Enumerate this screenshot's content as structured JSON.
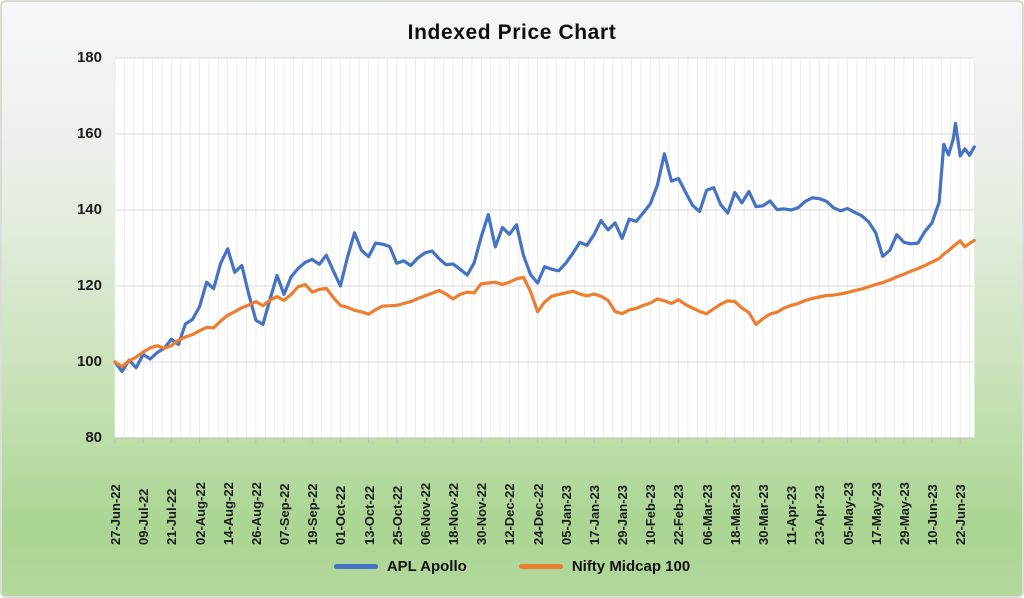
{
  "title": "Indexed Price Chart",
  "colors": {
    "apl_apollo": "#4472c4",
    "nifty_midcap": "#ed7d31",
    "plot_background": "#ffffff",
    "grid_vertical": "#ececec",
    "grid_horizontal": "#d9d9d9",
    "axis_line": "#bfbfbf",
    "text": "#1a1a1a",
    "page_gradient_top": "#f4f7f8",
    "page_gradient_bottom": "#abd593"
  },
  "chart_data": {
    "type": "line",
    "title": "Indexed Price Chart",
    "xlabel": "",
    "ylabel": "",
    "ylim": [
      80,
      180
    ],
    "y_ticks": [
      80,
      100,
      120,
      140,
      160,
      180
    ],
    "grid": {
      "horizontal": true,
      "vertical": true,
      "vertical_interval_days": 4
    },
    "legend_position": "bottom",
    "x_unit": "days since first point (27-Jun-22)",
    "x_tick_interval_days": 12,
    "x_tick_labels": [
      "27-Jun-22",
      "09-Jul-22",
      "21-Jul-22",
      "02-Aug-22",
      "14-Aug-22",
      "26-Aug-22",
      "07-Sep-22",
      "19-Sep-22",
      "01-Oct-22",
      "13-Oct-22",
      "25-Oct-22",
      "06-Nov-22",
      "18-Nov-22",
      "30-Nov-22",
      "12-Dec-22",
      "24-Dec-22",
      "05-Jan-23",
      "17-Jan-23",
      "29-Jan-23",
      "10-Feb-23",
      "22-Feb-23",
      "06-Mar-23",
      "18-Mar-23",
      "30-Mar-23",
      "11-Apr-23",
      "23-Apr-23",
      "05-May-23",
      "17-May-23",
      "29-May-23",
      "10-Jun-23",
      "22-Jun-23"
    ],
    "days": [
      0,
      3,
      6,
      9,
      12,
      15,
      18,
      21,
      24,
      27,
      30,
      33,
      36,
      39,
      42,
      45,
      48,
      51,
      54,
      57,
      60,
      63,
      66,
      69,
      72,
      75,
      78,
      81,
      84,
      87,
      90,
      93,
      96,
      99,
      102,
      105,
      108,
      111,
      114,
      117,
      120,
      123,
      126,
      129,
      132,
      135,
      138,
      141,
      144,
      147,
      150,
      153,
      156,
      159,
      162,
      165,
      168,
      171,
      174,
      177,
      180,
      183,
      186,
      189,
      192,
      195,
      198,
      201,
      204,
      207,
      210,
      213,
      216,
      219,
      222,
      225,
      228,
      231,
      234,
      237,
      240,
      243,
      246,
      249,
      252,
      255,
      258,
      261,
      264,
      267,
      270,
      273,
      276,
      279,
      282,
      285,
      288,
      291,
      294,
      297,
      300,
      303,
      306,
      309,
      312,
      315,
      318,
      321,
      324,
      327,
      330,
      333,
      336,
      339,
      342,
      345,
      348,
      351,
      353,
      355,
      357,
      358,
      360,
      362,
      364,
      366
    ],
    "series": [
      {
        "name": "APL Apollo",
        "color": "#4472c4",
        "values": [
          100,
          97.5,
          100.5,
          98.5,
          102,
          100.8,
          102.5,
          103.6,
          106,
          104.6,
          110,
          111.2,
          114.5,
          121,
          119.3,
          126,
          129.8,
          123.6,
          125.4,
          117.8,
          111,
          109.9,
          116.5,
          122.8,
          117.8,
          122.4,
          124.6,
          126.2,
          127,
          125.7,
          128.1,
          124,
          120,
          127.5,
          134,
          129.4,
          127.7,
          131.3,
          131,
          130.4,
          126,
          126.6,
          125.4,
          127.4,
          128.7,
          129.2,
          127.2,
          125.6,
          125.8,
          124.4,
          122.9,
          126.1,
          133,
          138.8,
          130.3,
          135.4,
          133.6,
          136.1,
          128,
          123,
          120.8,
          125.1,
          124.4,
          124,
          126,
          128.6,
          131.5,
          130.7,
          133.5,
          137.2,
          134.8,
          136.6,
          132.5,
          137.6,
          137,
          139.3,
          141.6,
          146.5,
          154.8,
          147.6,
          148.3,
          144.7,
          141.2,
          139.6,
          145.2,
          145.9,
          141.4,
          139.2,
          144.6,
          141.9,
          144.9,
          140.9,
          141.1,
          142.4,
          140.1,
          140.3,
          140,
          140.6,
          142.3,
          143.2,
          143,
          142.3,
          140.6,
          139.8,
          140.4,
          139.4,
          138.5,
          136.9,
          134,
          127.8,
          129.4,
          133.5,
          131.5,
          131.1,
          131.3,
          134.4,
          136.6,
          142,
          157.3,
          154.5,
          158.6,
          162.8,
          154.2,
          156.1,
          154.4,
          156.6
        ]
      },
      {
        "name": "Nifty Midcap 100",
        "color": "#ed7d31",
        "values": [
          100,
          98.8,
          100.3,
          101.3,
          102.6,
          103.7,
          104.3,
          103.6,
          104.3,
          105.7,
          106.6,
          107.2,
          108.2,
          109.1,
          109,
          110.8,
          112.3,
          113.2,
          114.3,
          115,
          115.9,
          114.8,
          116.3,
          117.2,
          116.2,
          117.8,
          119.8,
          120.4,
          118.4,
          119.1,
          119.4,
          117,
          114.9,
          114.4,
          113.6,
          113.2,
          112.6,
          113.8,
          114.7,
          114.8,
          114.9,
          115.4,
          115.9,
          116.7,
          117.4,
          118.1,
          118.8,
          117.9,
          116.6,
          117.8,
          118.4,
          118.2,
          120.6,
          120.8,
          121,
          120.4,
          121,
          121.9,
          122.3,
          118.5,
          113.2,
          115.8,
          117.3,
          117.8,
          118.2,
          118.6,
          117.9,
          117.4,
          117.9,
          117.3,
          116.2,
          113.3,
          112.7,
          113.7,
          114.1,
          114.9,
          115.5,
          116.6,
          116.1,
          115.4,
          116.4,
          115.1,
          114.2,
          113.3,
          112.7,
          114,
          115.2,
          116.1,
          115.9,
          114.2,
          113,
          109.9,
          111.4,
          112.6,
          113.1,
          114.2,
          114.9,
          115.4,
          116.2,
          116.7,
          117.1,
          117.5,
          117.6,
          117.9,
          118.3,
          118.8,
          119.2,
          119.8,
          120.4,
          120.9,
          121.6,
          122.4,
          123.1,
          123.9,
          124.6,
          125.4,
          126.3,
          127.2,
          128.4,
          129.3,
          130.4,
          130.9,
          131.9,
          130.3,
          131.2,
          132
        ]
      }
    ]
  }
}
